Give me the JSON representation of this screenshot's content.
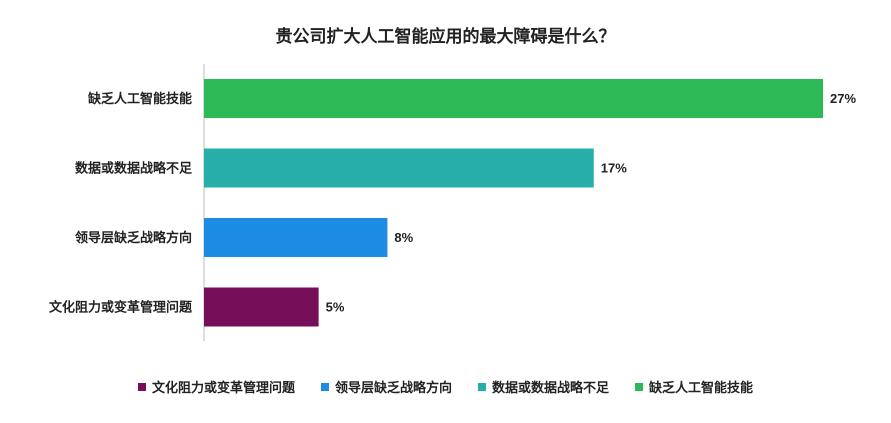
{
  "chart_data": {
    "type": "bar",
    "orientation": "horizontal",
    "title": "贵公司扩大人工智能应用的最大障碍是什么？",
    "categories": [
      "缺乏人工智能技能",
      "数据或数据战略不足",
      "领导层缺乏战略方向",
      "文化阻力或变革管理问题"
    ],
    "values": [
      27,
      17,
      8,
      5
    ],
    "value_labels": [
      "27%",
      "17%",
      "8%",
      "5%"
    ],
    "colors": [
      "#2db955",
      "#26aeab",
      "#1c8ce3",
      "#760e5a"
    ],
    "xlim": [
      0,
      27
    ],
    "grid": false,
    "legend_position": "bottom",
    "legend": [
      {
        "label": "文化阻力或变革管理问题",
        "color": "#760e5a"
      },
      {
        "label": "领导层缺乏战略方向",
        "color": "#1c8ce3"
      },
      {
        "label": "数据或数据战略不足",
        "color": "#26aeab"
      },
      {
        "label": "缺乏人工智能技能",
        "color": "#2db955"
      }
    ]
  }
}
